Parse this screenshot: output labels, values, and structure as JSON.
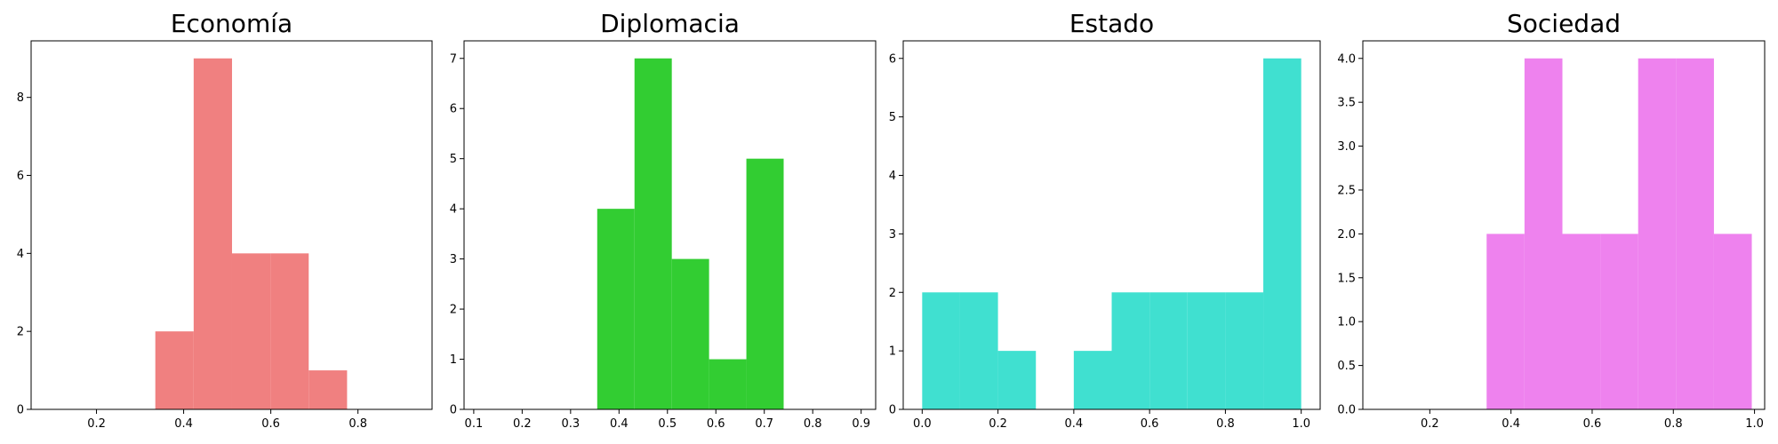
{
  "chart_data": [
    {
      "type": "bar",
      "subtype": "histogram",
      "title": "Economía",
      "color": "#f08080",
      "xlim": [
        0.05,
        0.97
      ],
      "ylim": [
        0,
        9.45
      ],
      "xticks": [
        0.2,
        0.4,
        0.6,
        0.8
      ],
      "yticks": [
        0,
        2,
        4,
        6,
        8
      ],
      "bins": [
        {
          "start": 0.335,
          "end": 0.423,
          "count": 2
        },
        {
          "start": 0.423,
          "end": 0.511,
          "count": 9
        },
        {
          "start": 0.511,
          "end": 0.599,
          "count": 4
        },
        {
          "start": 0.599,
          "end": 0.687,
          "count": 4
        },
        {
          "start": 0.687,
          "end": 0.775,
          "count": 1
        }
      ]
    },
    {
      "type": "bar",
      "subtype": "histogram",
      "title": "Diplomacia",
      "color": "#32cd32",
      "xlim": [
        0.08,
        0.93
      ],
      "ylim": [
        0,
        7.35
      ],
      "xticks": [
        0.1,
        0.2,
        0.3,
        0.4,
        0.5,
        0.6,
        0.7,
        0.8,
        0.9
      ],
      "yticks": [
        0,
        1,
        2,
        3,
        4,
        5,
        6,
        7
      ],
      "bins": [
        {
          "start": 0.355,
          "end": 0.432,
          "count": 4
        },
        {
          "start": 0.432,
          "end": 0.509,
          "count": 7
        },
        {
          "start": 0.509,
          "end": 0.586,
          "count": 3
        },
        {
          "start": 0.586,
          "end": 0.663,
          "count": 1
        },
        {
          "start": 0.663,
          "end": 0.74,
          "count": 5
        }
      ]
    },
    {
      "type": "bar",
      "subtype": "histogram",
      "title": "Estado",
      "color": "#40e0d0",
      "xlim": [
        -0.05,
        1.05
      ],
      "ylim": [
        0,
        6.3
      ],
      "xticks": [
        "0.0",
        "0.2",
        "0.4",
        "0.6",
        "0.8",
        "1.0"
      ],
      "yticks": [
        0,
        1,
        2,
        3,
        4,
        5,
        6
      ],
      "bins": [
        {
          "start": 0.0,
          "end": 0.1,
          "count": 2
        },
        {
          "start": 0.1,
          "end": 0.2,
          "count": 2
        },
        {
          "start": 0.2,
          "end": 0.3,
          "count": 1
        },
        {
          "start": 0.3,
          "end": 0.4,
          "count": 0
        },
        {
          "start": 0.4,
          "end": 0.5,
          "count": 1
        },
        {
          "start": 0.5,
          "end": 0.6,
          "count": 2
        },
        {
          "start": 0.6,
          "end": 0.7,
          "count": 2
        },
        {
          "start": 0.7,
          "end": 0.8,
          "count": 2
        },
        {
          "start": 0.8,
          "end": 0.9,
          "count": 2
        },
        {
          "start": 0.9,
          "end": 1.0,
          "count": 6
        }
      ]
    },
    {
      "type": "bar",
      "subtype": "histogram",
      "title": "Sociedad",
      "color": "#ee82ee",
      "xlim": [
        0.035,
        1.025
      ],
      "ylim": [
        0,
        4.2
      ],
      "xticks": [
        0.2,
        0.4,
        0.6,
        0.8,
        "1.0"
      ],
      "yticks": [
        "0.0",
        "0.5",
        "1.0",
        "1.5",
        "2.0",
        "2.5",
        "3.0",
        "3.5",
        "4.0"
      ],
      "bins": [
        {
          "start": 0.34,
          "end": 0.4333,
          "count": 2
        },
        {
          "start": 0.4333,
          "end": 0.5267,
          "count": 4
        },
        {
          "start": 0.5267,
          "end": 0.62,
          "count": 2
        },
        {
          "start": 0.62,
          "end": 0.7133,
          "count": 2
        },
        {
          "start": 0.7133,
          "end": 0.8067,
          "count": 4
        },
        {
          "start": 0.8067,
          "end": 0.9,
          "count": 4
        },
        {
          "start": 0.9,
          "end": 0.9933,
          "count": 2
        }
      ]
    }
  ]
}
